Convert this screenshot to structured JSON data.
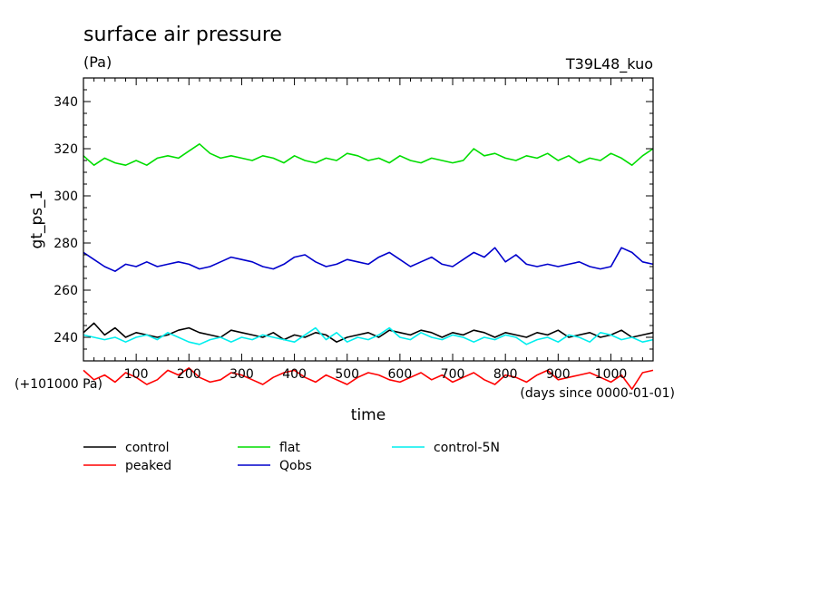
{
  "chart_data": {
    "type": "line",
    "title": "surface air pressure",
    "subtitle": "(Pa)",
    "run_label": "T39L48_kuo",
    "xlabel": "time",
    "ylabel": "gt_ps_1",
    "x_unit_note": "(days since 0000-01-01)",
    "y_offset_note": "(+101000 Pa)",
    "xlim": [
      0,
      1080
    ],
    "ylim": [
      230,
      350
    ],
    "x_ticks": [
      100,
      200,
      300,
      400,
      500,
      600,
      700,
      800,
      900,
      1000
    ],
    "y_ticks": [
      240,
      260,
      280,
      300,
      320,
      340
    ],
    "grid": false,
    "legend_position": "bottom-left",
    "series": [
      {
        "name": "control",
        "color": "#000000",
        "x": [
          0,
          20,
          40,
          60,
          80,
          100,
          120,
          140,
          160,
          180,
          200,
          220,
          240,
          260,
          280,
          300,
          320,
          340,
          360,
          380,
          400,
          420,
          440,
          460,
          480,
          500,
          520,
          540,
          560,
          580,
          600,
          620,
          640,
          660,
          680,
          700,
          720,
          740,
          760,
          780,
          800,
          820,
          840,
          860,
          880,
          900,
          920,
          940,
          960,
          980,
          1000,
          1020,
          1040,
          1060,
          1080
        ],
        "values": [
          242,
          246,
          241,
          244,
          240,
          242,
          241,
          240,
          241,
          243,
          244,
          242,
          241,
          240,
          243,
          242,
          241,
          240,
          242,
          239,
          241,
          240,
          242,
          241,
          238,
          240,
          241,
          242,
          240,
          243,
          242,
          241,
          243,
          242,
          240,
          242,
          241,
          243,
          242,
          240,
          242,
          241,
          240,
          242,
          241,
          243,
          240,
          241,
          242,
          240,
          241,
          243,
          240,
          241,
          242
        ]
      },
      {
        "name": "peaked",
        "color": "#ff0000",
        "x": [
          0,
          20,
          40,
          60,
          80,
          100,
          120,
          140,
          160,
          180,
          200,
          220,
          240,
          260,
          280,
          300,
          320,
          340,
          360,
          380,
          400,
          420,
          440,
          460,
          480,
          500,
          520,
          540,
          560,
          580,
          600,
          620,
          640,
          660,
          680,
          700,
          720,
          740,
          760,
          780,
          800,
          820,
          840,
          860,
          880,
          900,
          920,
          940,
          960,
          980,
          1000,
          1020,
          1040,
          1060,
          1080
        ],
        "values": [
          226,
          222,
          224,
          221,
          225,
          223,
          220,
          222,
          226,
          224,
          227,
          223,
          221,
          222,
          225,
          224,
          222,
          220,
          223,
          225,
          226,
          223,
          221,
          224,
          222,
          220,
          223,
          225,
          224,
          222,
          221,
          223,
          225,
          222,
          224,
          221,
          223,
          225,
          222,
          220,
          224,
          223,
          221,
          224,
          226,
          222,
          223,
          224,
          225,
          223,
          221,
          224,
          218,
          225,
          226
        ]
      },
      {
        "name": "flat",
        "color": "#00dd00",
        "x": [
          0,
          20,
          40,
          60,
          80,
          100,
          120,
          140,
          160,
          180,
          200,
          220,
          240,
          260,
          280,
          300,
          320,
          340,
          360,
          380,
          400,
          420,
          440,
          460,
          480,
          500,
          520,
          540,
          560,
          580,
          600,
          620,
          640,
          660,
          680,
          700,
          720,
          740,
          760,
          780,
          800,
          820,
          840,
          860,
          880,
          900,
          920,
          940,
          960,
          980,
          1000,
          1020,
          1040,
          1060,
          1080
        ],
        "values": [
          317,
          313,
          316,
          314,
          313,
          315,
          313,
          316,
          317,
          316,
          319,
          322,
          318,
          316,
          317,
          316,
          315,
          317,
          316,
          314,
          317,
          315,
          314,
          316,
          315,
          318,
          317,
          315,
          316,
          314,
          317,
          315,
          314,
          316,
          315,
          314,
          315,
          320,
          317,
          318,
          316,
          315,
          317,
          316,
          318,
          315,
          317,
          314,
          316,
          315,
          318,
          316,
          313,
          317,
          320
        ]
      },
      {
        "name": "Qobs",
        "color": "#0000cc",
        "x": [
          0,
          20,
          40,
          60,
          80,
          100,
          120,
          140,
          160,
          180,
          200,
          220,
          240,
          260,
          280,
          300,
          320,
          340,
          360,
          380,
          400,
          420,
          440,
          460,
          480,
          500,
          520,
          540,
          560,
          580,
          600,
          620,
          640,
          660,
          680,
          700,
          720,
          740,
          760,
          780,
          800,
          820,
          840,
          860,
          880,
          900,
          920,
          940,
          960,
          980,
          1000,
          1020,
          1040,
          1060,
          1080
        ],
        "values": [
          276,
          273,
          270,
          268,
          271,
          270,
          272,
          270,
          271,
          272,
          271,
          269,
          270,
          272,
          274,
          273,
          272,
          270,
          269,
          271,
          274,
          275,
          272,
          270,
          271,
          273,
          272,
          271,
          274,
          276,
          273,
          270,
          272,
          274,
          271,
          270,
          273,
          276,
          274,
          278,
          272,
          275,
          271,
          270,
          271,
          270,
          271,
          272,
          270,
          269,
          270,
          278,
          276,
          272,
          271
        ]
      },
      {
        "name": "control-5N",
        "color": "#00eeee",
        "x": [
          0,
          20,
          40,
          60,
          80,
          100,
          120,
          140,
          160,
          180,
          200,
          220,
          240,
          260,
          280,
          300,
          320,
          340,
          360,
          380,
          400,
          420,
          440,
          460,
          480,
          500,
          520,
          540,
          560,
          580,
          600,
          620,
          640,
          660,
          680,
          700,
          720,
          740,
          760,
          780,
          800,
          820,
          840,
          860,
          880,
          900,
          920,
          940,
          960,
          980,
          1000,
          1020,
          1040,
          1060,
          1080
        ],
        "values": [
          241,
          240,
          239,
          240,
          238,
          240,
          241,
          239,
          242,
          240,
          238,
          237,
          239,
          240,
          238,
          240,
          239,
          241,
          240,
          239,
          238,
          241,
          244,
          239,
          242,
          238,
          240,
          239,
          241,
          244,
          240,
          239,
          242,
          240,
          239,
          241,
          240,
          238,
          240,
          239,
          241,
          240,
          237,
          239,
          240,
          238,
          241,
          240,
          238,
          242,
          241,
          239,
          240,
          238,
          239
        ]
      }
    ]
  }
}
